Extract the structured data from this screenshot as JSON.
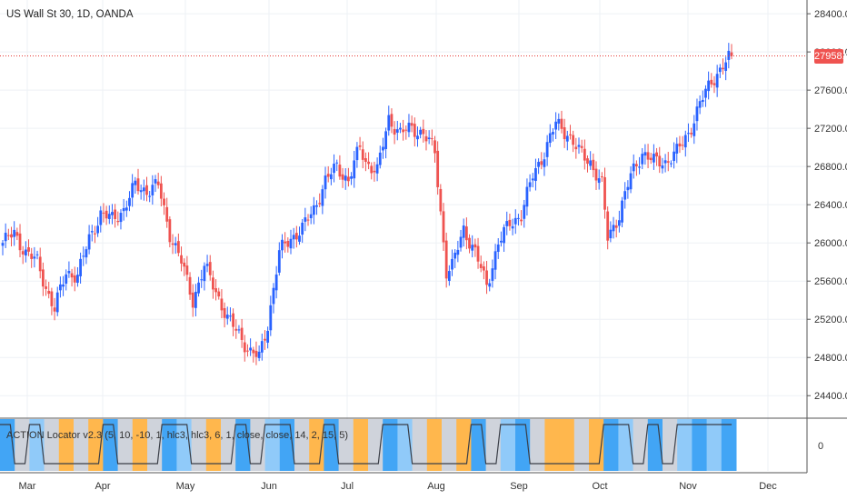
{
  "header": {
    "symbol_title": "US Wall St 30, 1D, OANDA",
    "indicator_title": "ACTION Locator v2.3 (5, 10, -10, 1, hlc3, hlc3, 6, 1, close, close, 14, 2, 15, 5)"
  },
  "last_price_label": "27958.0",
  "colors": {
    "up": "#2962ff",
    "down": "#ef5350",
    "grid": "#eef1f5",
    "last_price_line": "#e53935",
    "ind_blue": "#42a5f5",
    "ind_light_blue": "#90caf9",
    "ind_orange": "#ffb74d",
    "ind_gray": "#cfd3db",
    "ind_line": "#3b3f48"
  },
  "chart_data": {
    "type": "candlestick",
    "title": "US Wall St 30, 1D, OANDA",
    "x_ticks": [
      "Mar",
      "Apr",
      "May",
      "Jun",
      "Jul",
      "Aug",
      "Sep",
      "Oct",
      "Nov",
      "Dec"
    ],
    "y_ticks": [
      "28400.0",
      "28000.0",
      "27600.0",
      "27200.0",
      "26800.0",
      "26400.0",
      "26000.0",
      "25600.0",
      "25200.0",
      "24800.0",
      "24400.0"
    ],
    "ylim": [
      24250,
      28620
    ],
    "last_price": 27958.0,
    "grid": true,
    "price_anchors": [
      [
        0,
        26000
      ],
      [
        4,
        26100
      ],
      [
        8,
        25900
      ],
      [
        12,
        25800
      ],
      [
        16,
        25450
      ],
      [
        18,
        25300
      ],
      [
        22,
        25700
      ],
      [
        26,
        25650
      ],
      [
        30,
        26050
      ],
      [
        34,
        26300
      ],
      [
        38,
        26250
      ],
      [
        42,
        26350
      ],
      [
        46,
        26600
      ],
      [
        50,
        26550
      ],
      [
        54,
        26600
      ],
      [
        58,
        26100
      ],
      [
        62,
        25800
      ],
      [
        66,
        25400
      ],
      [
        70,
        25750
      ],
      [
        74,
        25500
      ],
      [
        78,
        25200
      ],
      [
        82,
        25050
      ],
      [
        86,
        24850
      ],
      [
        89,
        24800
      ],
      [
        92,
        25150
      ],
      [
        96,
        25900
      ],
      [
        100,
        26050
      ],
      [
        104,
        26150
      ],
      [
        108,
        26350
      ],
      [
        112,
        26650
      ],
      [
        116,
        26800
      ],
      [
        120,
        26650
      ],
      [
        124,
        27000
      ],
      [
        126,
        26850
      ],
      [
        130,
        26750
      ],
      [
        134,
        27300
      ],
      [
        138,
        27150
      ],
      [
        142,
        27200
      ],
      [
        146,
        27150
      ],
      [
        150,
        26950
      ],
      [
        154,
        25700
      ],
      [
        156,
        25750
      ],
      [
        160,
        26150
      ],
      [
        164,
        25900
      ],
      [
        168,
        25550
      ],
      [
        172,
        26000
      ],
      [
        176,
        26200
      ],
      [
        180,
        26300
      ],
      [
        184,
        26700
      ],
      [
        188,
        26950
      ],
      [
        192,
        27250
      ],
      [
        196,
        27150
      ],
      [
        200,
        26950
      ],
      [
        204,
        26850
      ],
      [
        208,
        26600
      ],
      [
        210,
        26050
      ],
      [
        214,
        26300
      ],
      [
        218,
        26700
      ],
      [
        222,
        26950
      ],
      [
        226,
        26850
      ],
      [
        230,
        26850
      ],
      [
        234,
        26950
      ],
      [
        238,
        27150
      ],
      [
        242,
        27450
      ],
      [
        246,
        27700
      ],
      [
        250,
        27850
      ],
      [
        253,
        27958
      ]
    ],
    "indicator": {
      "zero_label": "0",
      "band_colors": [
        "blue",
        "gray",
        "light_blue",
        "gray",
        "orange",
        "gray",
        "orange",
        "blue",
        "gray",
        "orange",
        "gray",
        "blue",
        "light_blue",
        "gray",
        "orange",
        "gray",
        "blue",
        "gray",
        "light_blue",
        "blue",
        "gray",
        "orange",
        "blue",
        "gray",
        "orange",
        "gray",
        "blue",
        "light_blue",
        "gray",
        "orange",
        "gray",
        "orange",
        "blue",
        "gray",
        "light_blue",
        "blue",
        "gray",
        "orange",
        "orange",
        "gray",
        "orange",
        "blue",
        "light_blue",
        "gray",
        "blue",
        "gray",
        "light_blue",
        "blue",
        "light_blue",
        "blue"
      ]
    }
  }
}
